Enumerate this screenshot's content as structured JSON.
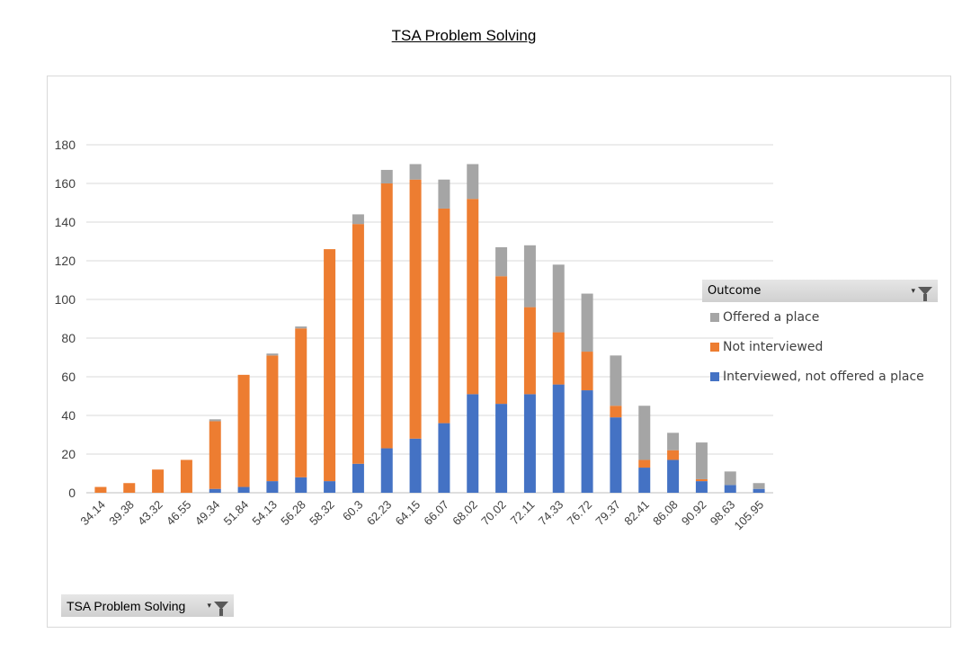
{
  "page": {
    "title": "TSA Problem Solving"
  },
  "chart_data": {
    "type": "bar",
    "stacked": true,
    "title": "",
    "xlabel": "",
    "ylabel": "",
    "ylim": [
      0,
      180
    ],
    "yticks": [
      0,
      20,
      40,
      60,
      80,
      100,
      120,
      140,
      160,
      180
    ],
    "grid": true,
    "legend_placement": "right",
    "categories": [
      "34.14",
      "39.38",
      "43.32",
      "46.55",
      "49.34",
      "51.84",
      "54.13",
      "56.28",
      "58.32",
      "60.3",
      "62.23",
      "64.15",
      "66.07",
      "68.02",
      "70.02",
      "72.11",
      "74.33",
      "76.72",
      "79.37",
      "82.41",
      "86.08",
      "90.92",
      "98.63",
      "105.95"
    ],
    "series": [
      {
        "name": "Interviewed, not offered a place",
        "color": "#4472c4",
        "values": [
          0,
          0,
          0,
          0,
          2,
          3,
          6,
          8,
          6,
          15,
          23,
          28,
          36,
          51,
          46,
          51,
          56,
          53,
          39,
          13,
          17,
          6,
          4,
          2
        ]
      },
      {
        "name": "Not interviewed",
        "color": "#ed7d31",
        "values": [
          3,
          5,
          12,
          17,
          35,
          58,
          65,
          77,
          120,
          124,
          137,
          134,
          111,
          101,
          66,
          45,
          27,
          20,
          6,
          4,
          5,
          1,
          0,
          0
        ]
      },
      {
        "name": "Offered a place",
        "color": "#a5a5a5",
        "values": [
          0,
          0,
          0,
          0,
          1,
          0,
          1,
          1,
          0,
          5,
          7,
          8,
          15,
          18,
          15,
          32,
          35,
          30,
          26,
          28,
          9,
          19,
          7,
          3
        ]
      }
    ]
  },
  "legend": {
    "title": "Outcome",
    "items": [
      {
        "label": "Offered a place",
        "color": "#a5a5a5"
      },
      {
        "label": "Not interviewed",
        "color": "#ed7d31"
      },
      {
        "label": "Interviewed, not offered a place",
        "color": "#4472c4"
      }
    ]
  },
  "field_button": {
    "label": "TSA Problem Solving",
    "caret": "▾",
    "icon": "filter-funnel-icon"
  }
}
